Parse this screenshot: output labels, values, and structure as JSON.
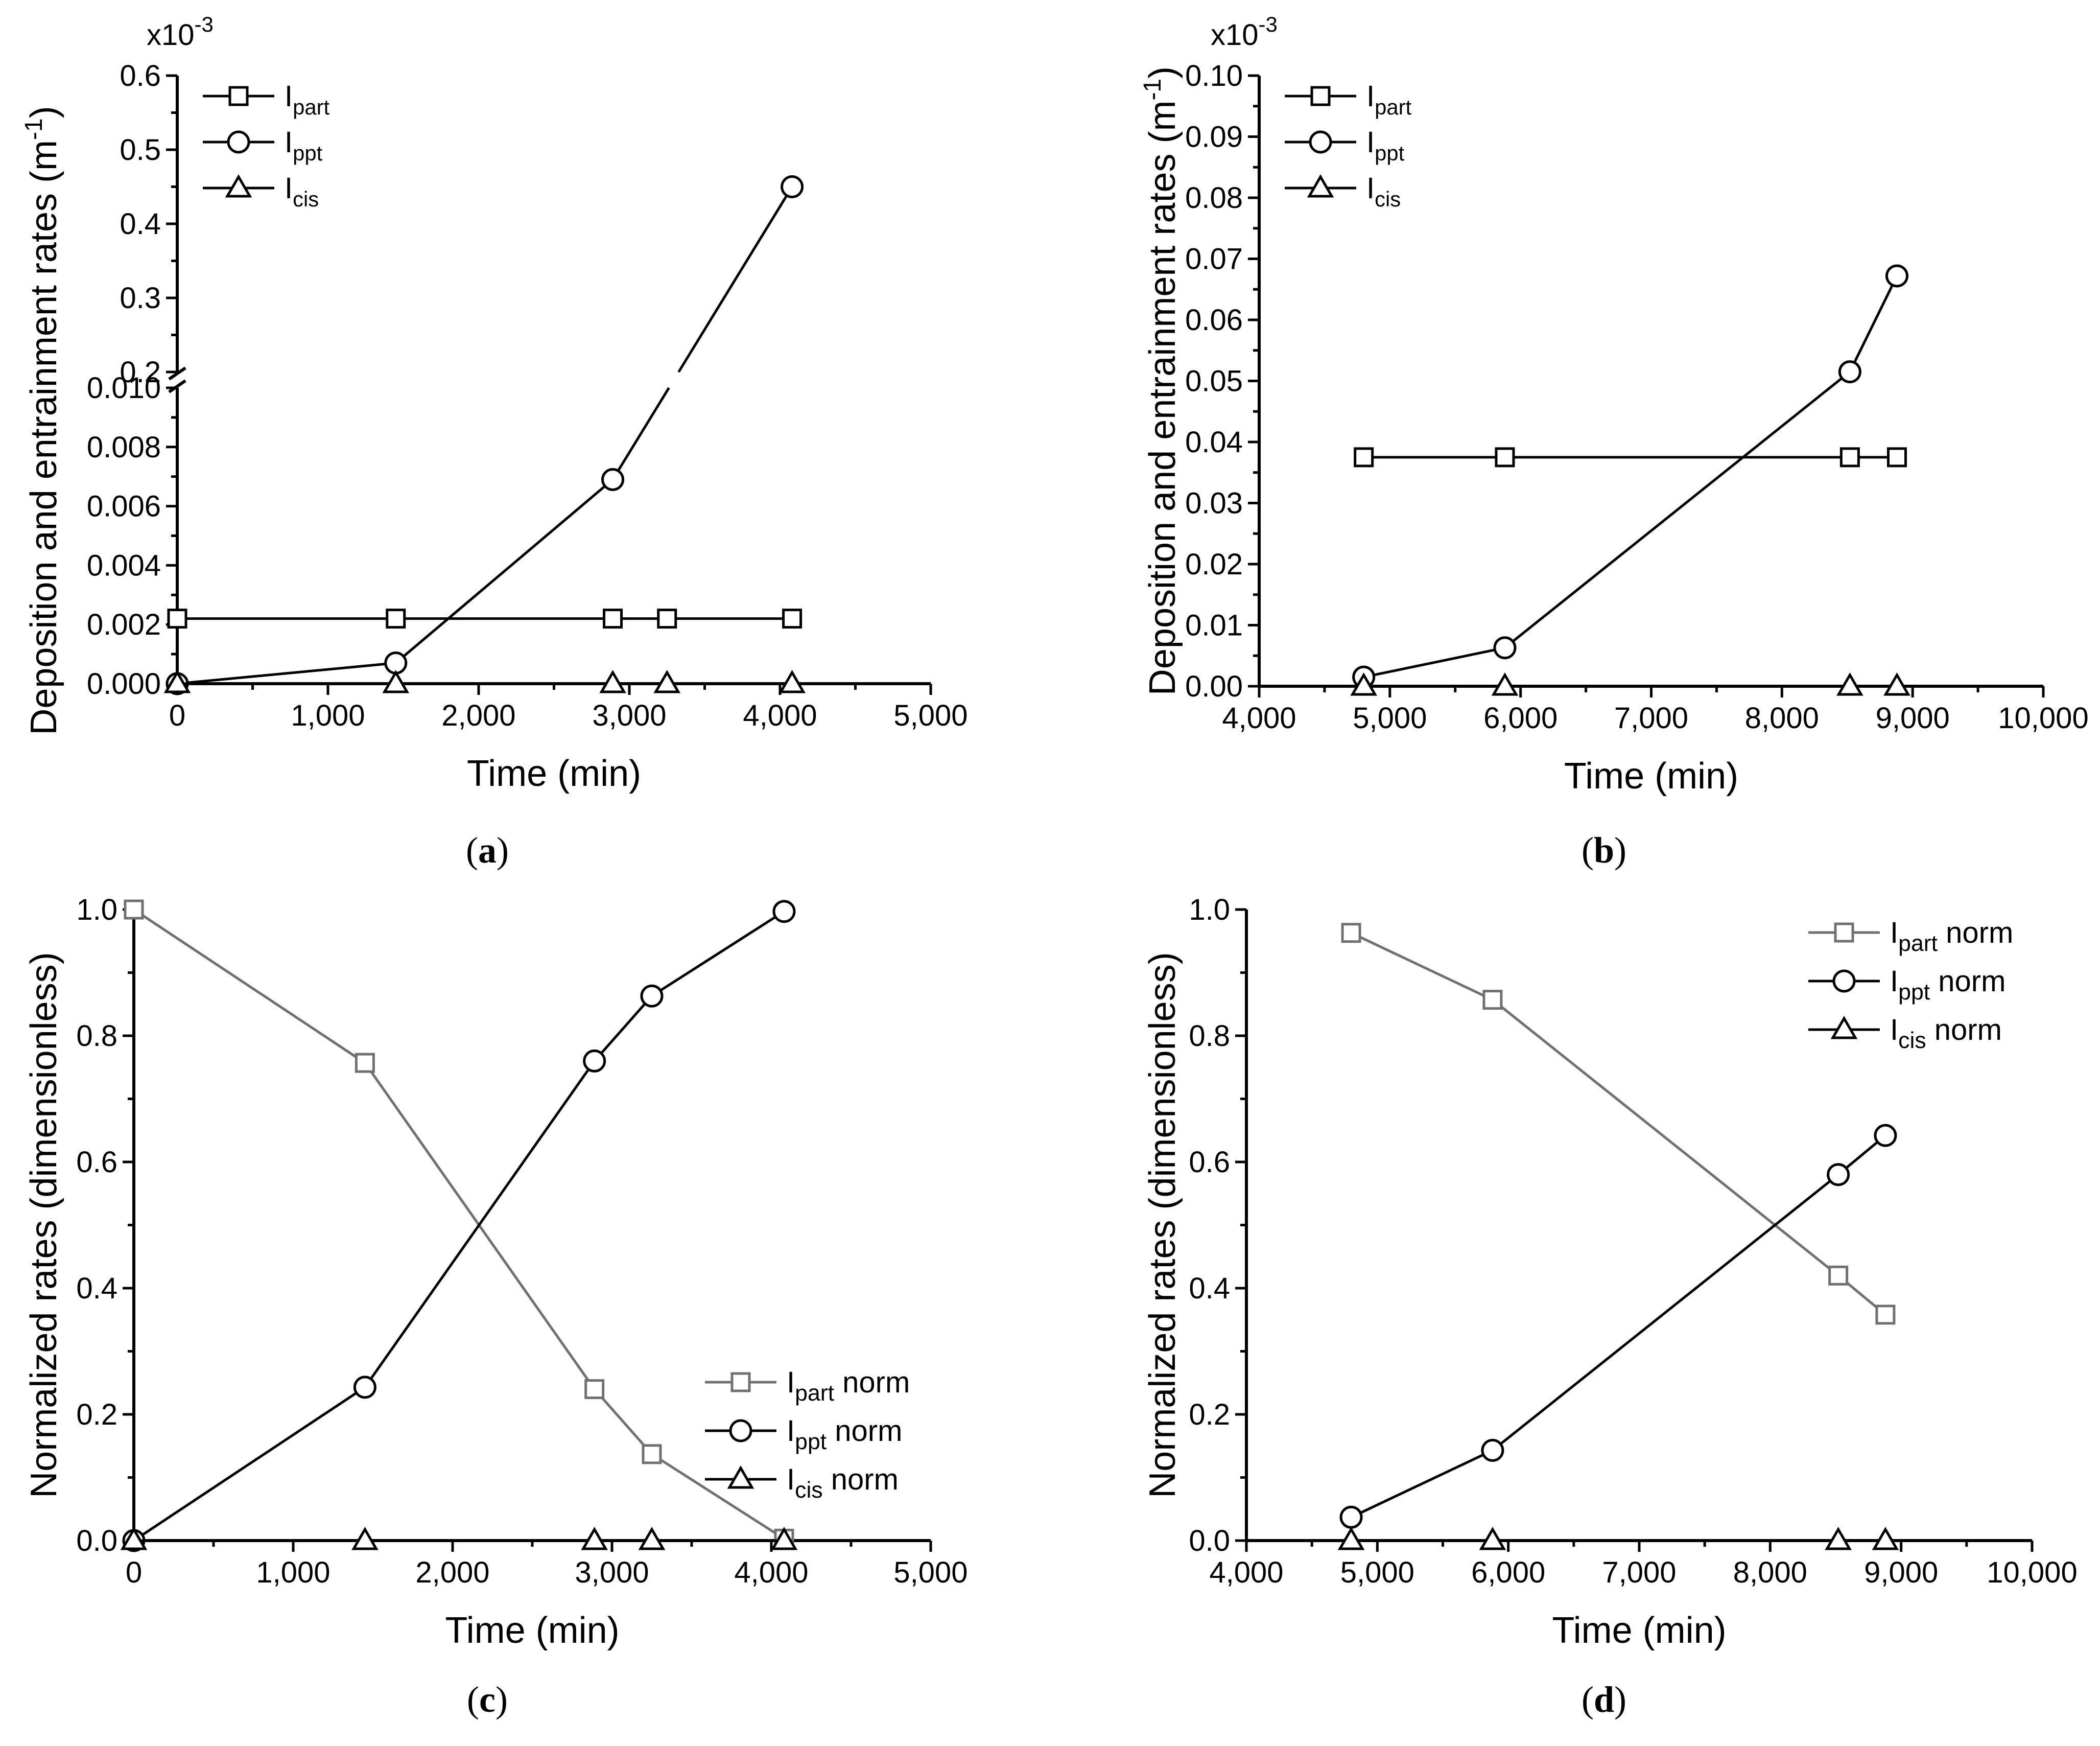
{
  "chart_data": [
    {
      "id": "a",
      "type": "line",
      "caption": "a",
      "xlabel": "Time (min)",
      "ylabel": "Deposition and entrainment rates (m",
      "ylabel_sup": "-1",
      "ylabel_close": ")",
      "multiplier": "x10",
      "multiplier_exp": "-3",
      "x_ticks": [
        "0",
        "1,000",
        "2,000",
        "3,000",
        "4,000",
        "5,000"
      ],
      "x_tick_values": [
        0,
        1000,
        2000,
        3000,
        4000,
        5000
      ],
      "xlim": [
        0,
        5000
      ],
      "y_break": true,
      "y_lower_ticks": [
        "0.000",
        "0.002",
        "0.004",
        "0.006",
        "0.008",
        "0.010"
      ],
      "y_lower_tick_values": [
        0,
        0.002,
        0.004,
        0.006,
        0.008,
        0.01
      ],
      "y_lower_lim": [
        0,
        0.01
      ],
      "y_upper_ticks": [
        "0.2",
        "0.3",
        "0.4",
        "0.5",
        "0.6"
      ],
      "y_upper_tick_values": [
        0.2,
        0.3,
        0.4,
        0.5,
        0.6
      ],
      "y_upper_lim": [
        0.2,
        0.6
      ],
      "legend_position": "top-left",
      "series": [
        {
          "name": "I",
          "sub": "part",
          "suffix": "",
          "marker": "square",
          "color": "#000000",
          "x": [
            0,
            1450,
            2890,
            3250,
            4080
          ],
          "y": [
            0.0022,
            0.0022,
            0.0022,
            0.0022,
            0.0022
          ]
        },
        {
          "name": "I",
          "sub": "ppt",
          "suffix": "",
          "marker": "circle",
          "color": "#000000",
          "x": [
            0,
            1450,
            2890,
            4080
          ],
          "y": [
            0.0,
            0.0007,
            0.0069,
            0.45
          ]
        },
        {
          "name": "I",
          "sub": "cis",
          "suffix": "",
          "marker": "triangle",
          "color": "#000000",
          "x": [
            0,
            1450,
            2890,
            3250,
            4080
          ],
          "y": [
            0,
            0,
            0,
            0,
            0
          ]
        }
      ]
    },
    {
      "id": "b",
      "type": "line",
      "caption": "b",
      "xlabel": "Time (min)",
      "ylabel": "Deposition and entrainment rates (m",
      "ylabel_sup": "-1",
      "ylabel_close": ")",
      "multiplier": "x10",
      "multiplier_exp": "-3",
      "x_ticks": [
        "4,000",
        "5,000",
        "6,000",
        "7,000",
        "8,000",
        "9,000",
        "10,000"
      ],
      "x_tick_values": [
        4000,
        5000,
        6000,
        7000,
        8000,
        9000,
        10000
      ],
      "xlim": [
        4000,
        10000
      ],
      "y_ticks": [
        "0.00",
        "0.01",
        "0.02",
        "0.03",
        "0.04",
        "0.05",
        "0.06",
        "0.07",
        "0.08",
        "0.09",
        "0.10"
      ],
      "y_tick_values": [
        0,
        0.01,
        0.02,
        0.03,
        0.04,
        0.05,
        0.06,
        0.07,
        0.08,
        0.09,
        0.1
      ],
      "ylim": [
        0,
        0.1
      ],
      "legend_position": "top-left",
      "series": [
        {
          "name": "I",
          "sub": "part",
          "suffix": "",
          "marker": "square",
          "color": "#000000",
          "x": [
            4800,
            5880,
            8520,
            8880
          ],
          "y": [
            0.0375,
            0.0375,
            0.0375,
            0.0375
          ]
        },
        {
          "name": "I",
          "sub": "ppt",
          "suffix": "",
          "marker": "circle",
          "color": "#000000",
          "x": [
            4800,
            5880,
            8520,
            8880
          ],
          "y": [
            0.0015,
            0.0063,
            0.0515,
            0.0672
          ]
        },
        {
          "name": "I",
          "sub": "cis",
          "suffix": "",
          "marker": "triangle",
          "color": "#000000",
          "x": [
            4800,
            5880,
            8520,
            8880
          ],
          "y": [
            0,
            0,
            0,
            0
          ]
        }
      ]
    },
    {
      "id": "c",
      "type": "line",
      "caption": "c",
      "xlabel": "Time (min)",
      "ylabel": "Normalized rates (dimensionless)",
      "x_ticks": [
        "0",
        "1,000",
        "2,000",
        "3,000",
        "4,000",
        "5,000"
      ],
      "x_tick_values": [
        0,
        1000,
        2000,
        3000,
        4000,
        5000
      ],
      "xlim": [
        0,
        5000
      ],
      "y_ticks": [
        "0.0",
        "0.2",
        "0.4",
        "0.6",
        "0.8",
        "1.0"
      ],
      "y_tick_values": [
        0,
        0.2,
        0.4,
        0.6,
        0.8,
        1.0
      ],
      "ylim": [
        0,
        1.0
      ],
      "legend_position": "bottom-right",
      "series": [
        {
          "name": "I",
          "sub": "part",
          "suffix": " norm",
          "marker": "square",
          "color": "#707070",
          "x": [
            0,
            1450,
            2890,
            3250,
            4080
          ],
          "y": [
            1.0,
            0.757,
            0.24,
            0.137,
            0.003
          ]
        },
        {
          "name": "I",
          "sub": "ppt",
          "suffix": " norm",
          "marker": "circle",
          "color": "#000000",
          "x": [
            0,
            1450,
            2890,
            3250,
            4080
          ],
          "y": [
            0.0,
            0.243,
            0.76,
            0.863,
            0.997
          ]
        },
        {
          "name": "I",
          "sub": "cis",
          "suffix": " norm",
          "marker": "triangle",
          "color": "#000000",
          "x": [
            0,
            1450,
            2890,
            3250,
            4080
          ],
          "y": [
            0,
            0,
            0,
            0,
            0
          ]
        }
      ]
    },
    {
      "id": "d",
      "type": "line",
      "caption": "d",
      "xlabel": "Time (min)",
      "ylabel": "Normalized rates (dimensionless)",
      "x_ticks": [
        "4,000",
        "5,000",
        "6,000",
        "7,000",
        "8,000",
        "9,000",
        "10,000"
      ],
      "x_tick_values": [
        4000,
        5000,
        6000,
        7000,
        8000,
        9000,
        10000
      ],
      "xlim": [
        4000,
        10000
      ],
      "y_ticks": [
        "0.0",
        "0.2",
        "0.4",
        "0.6",
        "0.8",
        "1.0"
      ],
      "y_tick_values": [
        0,
        0.2,
        0.4,
        0.6,
        0.8,
        1.0
      ],
      "ylim": [
        0,
        1.0
      ],
      "legend_position": "top-right",
      "series": [
        {
          "name": "I",
          "sub": "part",
          "suffix": " norm",
          "marker": "square",
          "color": "#707070",
          "x": [
            4800,
            5880,
            8520,
            8880
          ],
          "y": [
            0.963,
            0.857,
            0.42,
            0.358
          ]
        },
        {
          "name": "I",
          "sub": "ppt",
          "suffix": " norm",
          "marker": "circle",
          "color": "#000000",
          "x": [
            4800,
            5880,
            8520,
            8880
          ],
          "y": [
            0.037,
            0.143,
            0.58,
            0.642
          ]
        },
        {
          "name": "I",
          "sub": "cis",
          "suffix": " norm",
          "marker": "triangle",
          "color": "#000000",
          "x": [
            4800,
            5880,
            8520,
            8880
          ],
          "y": [
            0,
            0,
            0,
            0
          ]
        }
      ]
    }
  ]
}
